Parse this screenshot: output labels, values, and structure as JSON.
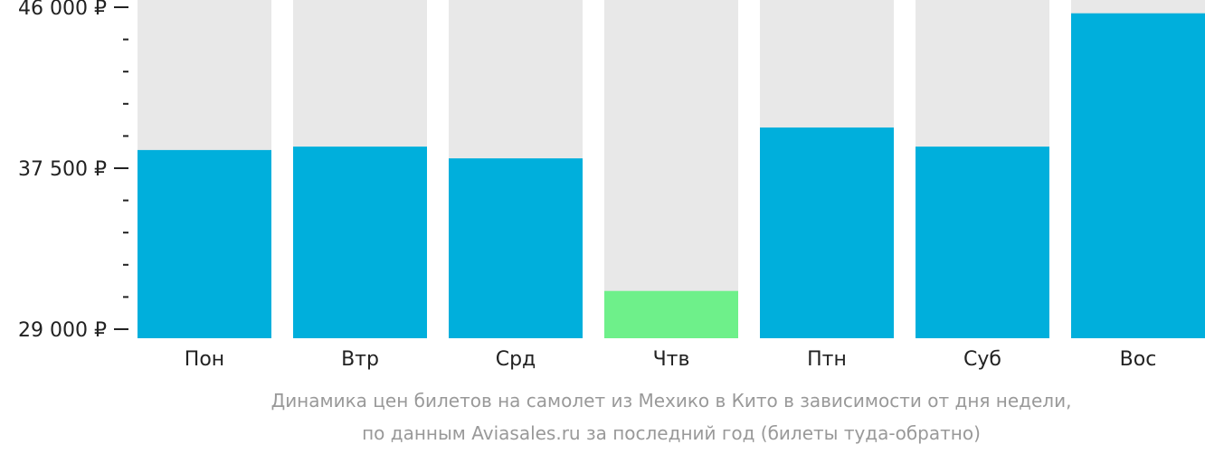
{
  "chart_data": {
    "type": "bar",
    "categories": [
      "Пон",
      "Втр",
      "Срд",
      "Чтв",
      "Птн",
      "Суб",
      "Вос"
    ],
    "values": [
      38460,
      38640,
      38020,
      31020,
      39650,
      38640,
      45680
    ],
    "highlight_index": 3,
    "ylim": [
      29000,
      46000
    ],
    "yticks": [
      {
        "value": 29000,
        "label": "29 000 ₽"
      },
      {
        "value": 37500,
        "label": "37 500 ₽"
      },
      {
        "value": 46000,
        "label": "46 000 ₽"
      }
    ],
    "minor_ticks": [
      30700,
      32400,
      34100,
      35800,
      39200,
      40900,
      42600,
      44300
    ],
    "colors": {
      "bar": "#00afdc",
      "bar_highlight": "#6ef08a",
      "bar_background": "#e8e8e8",
      "axis": "#222222"
    },
    "caption_line1": "Динамика цен билетов на самолет из Мехико в Кито в зависимости от дня недели,",
    "caption_line2": "по данным Aviasales.ru за последний год (билеты туда-обратно)"
  }
}
